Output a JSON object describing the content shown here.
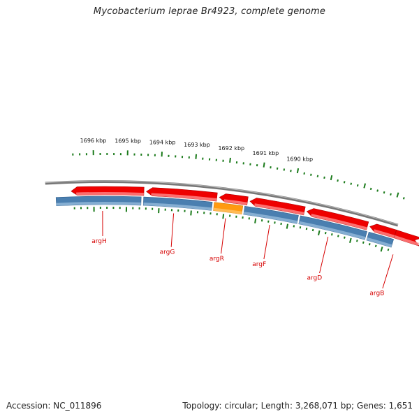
{
  "title": "Mycobacterium leprae Br4923, complete genome",
  "footer": {
    "accession": "Accession: NC_011896",
    "summary": "Topology: circular; Length: 3,268,071 bp; Genes: 1,651"
  },
  "colors": {
    "backbone": "#8a8a8a",
    "forward_gene": "#ee0000",
    "reverse_gene": "#4a7fb0",
    "highlight_gene": "#ff9a10",
    "tick": "#1a7a1a",
    "label": "#d60000"
  },
  "kbp_ticks": [
    {
      "label": "1696 kbp"
    },
    {
      "label": "1695 kbp"
    },
    {
      "label": "1694 kbp"
    },
    {
      "label": "1693 kbp"
    },
    {
      "label": "1692 kbp"
    },
    {
      "label": "1691 kbp"
    },
    {
      "label": "1690 kbp"
    }
  ],
  "genes": [
    {
      "name": "argH",
      "strand": "reverse"
    },
    {
      "name": "argG",
      "strand": "reverse"
    },
    {
      "name": "argR",
      "strand": "reverse",
      "highlight": true
    },
    {
      "name": "argF",
      "strand": "reverse"
    },
    {
      "name": "argD",
      "strand": "reverse"
    },
    {
      "name": "argB",
      "strand": "reverse"
    }
  ],
  "forward_features": [
    {
      "name": "forward-gene-1"
    },
    {
      "name": "forward-gene-2"
    },
    {
      "name": "forward-gene-3"
    },
    {
      "name": "forward-gene-4"
    },
    {
      "name": "forward-gene-5"
    },
    {
      "name": "forward-gene-6"
    },
    {
      "name": "forward-gene-7"
    }
  ]
}
